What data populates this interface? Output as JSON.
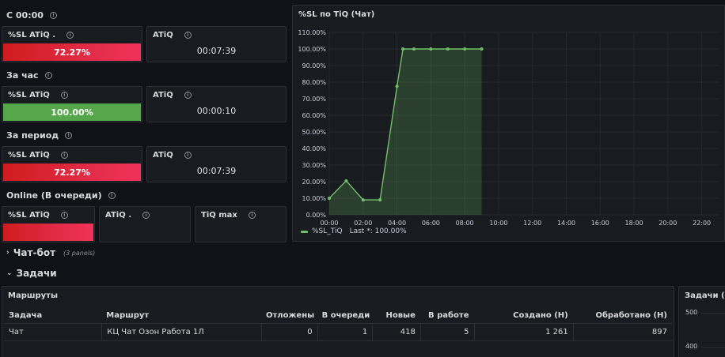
{
  "sections": {
    "since_midnight": "С 00:00",
    "per_hour": "За час",
    "per_period": "За период",
    "online": "Online (В очереди)"
  },
  "stats": {
    "since_midnight": {
      "sl_label": "%SL ATiQ .",
      "sl_value": "72.27%",
      "sl_fraction": 0.7227,
      "atiq_label": "ATiQ",
      "atiq_value": "00:07:39"
    },
    "per_hour": {
      "sl_label": "%SL ATiQ",
      "sl_value": "100.00%",
      "sl_fraction": 1.0,
      "atiq_label": "ATiQ",
      "atiq_value": "00:00:10"
    },
    "per_period": {
      "sl_label": "%SL ATiQ",
      "sl_value": "72.27%",
      "sl_fraction": 0.7227,
      "atiq_label": "ATiQ",
      "atiq_value": "00:07:39"
    },
    "online": {
      "sl_label": "%SL ATiQ",
      "atiq_label": "ATiQ .",
      "tiq_max_label": "TiQ max"
    }
  },
  "colors": {
    "threshold_red": "#e02a43",
    "threshold_green": "#56a64b",
    "series": "#73bf69"
  },
  "chart_data": {
    "type": "area",
    "title": "%SL по TiQ (Чат)",
    "x": [
      "00:00",
      "01:00",
      "02:00",
      "03:00",
      "04:00",
      "04:30",
      "05:00",
      "06:00",
      "07:00",
      "08:00",
      "09:00"
    ],
    "x_hours": [
      0,
      1,
      2,
      3,
      4,
      4.35,
      5,
      6,
      7,
      8,
      9
    ],
    "x_ticks": [
      "00:00",
      "02:00",
      "04:00",
      "06:00",
      "08:00",
      "10:00",
      "12:00",
      "14:00",
      "16:00",
      "18:00",
      "20:00",
      "22:00"
    ],
    "xlim_hours": [
      0,
      23
    ],
    "y_ticks": [
      "0.00%",
      "10.00%",
      "20.00%",
      "30.00%",
      "40.00%",
      "50.00%",
      "60.00%",
      "70.00%",
      "80.00%",
      "90.00%",
      "100.00%",
      "110.00%"
    ],
    "ylim": [
      0,
      110
    ],
    "series": [
      {
        "name": "%SL_TiQ",
        "values": [
          10,
          20.5,
          9,
          9,
          77.5,
          100,
          100,
          100,
          100,
          100,
          100
        ]
      }
    ],
    "legend": {
      "label": "%SL_TiQ",
      "last_text": "Last *: 100.00%"
    },
    "grid": true
  },
  "rows": {
    "chatbot": {
      "label": "Чат-бот",
      "sub": "(3 panels)"
    },
    "tasks": {
      "label": "Задачи"
    }
  },
  "routes": {
    "title": "Маршруты",
    "columns": [
      "Задача",
      "Маршрут",
      "Отложены",
      "В очереди",
      "Новые",
      "В работе",
      "Создано (Н)",
      "Обработано (Н)"
    ],
    "rows": [
      [
        "Чат",
        "КЦ Чат Озон Работа 1Л",
        "0",
        "1",
        "418",
        "5",
        "1 261",
        "897"
      ]
    ]
  },
  "side_panel": {
    "title": "Задачи (Ча",
    "y_ticks": [
      "500",
      "400"
    ]
  }
}
